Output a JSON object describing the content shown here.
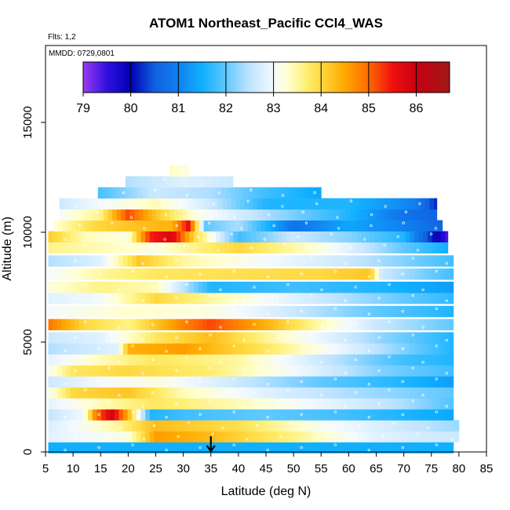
{
  "chart_data": {
    "type": "heatmap",
    "title": "ATOM1 Northeast_Pacific CCl4_WAS",
    "flights_note": "Flts: 1,2",
    "dates_note": "MMDD: 0729,0801",
    "xlabel": "Latitude (deg N)",
    "ylabel": "Altitude (m)",
    "xlim": [
      5,
      85
    ],
    "ylim": [
      0,
      18500
    ],
    "x_ticks": [
      5,
      10,
      15,
      20,
      25,
      30,
      35,
      40,
      45,
      50,
      55,
      60,
      65,
      70,
      75,
      80,
      85
    ],
    "y_ticks": [
      0,
      5000,
      10000,
      15000
    ],
    "colorbar": {
      "min": 79,
      "max": 86.7,
      "ticks": [
        79,
        80,
        81,
        82,
        83,
        84,
        85,
        86
      ],
      "stops": [
        [
          79.0,
          "#9a3cf0"
        ],
        [
          79.5,
          "#3010e0"
        ],
        [
          80.0,
          "#0000b4"
        ],
        [
          80.5,
          "#1060e0"
        ],
        [
          81.0,
          "#1080f0"
        ],
        [
          81.5,
          "#10b0ff"
        ],
        [
          82.0,
          "#60c8ff"
        ],
        [
          82.5,
          "#c0e4ff"
        ],
        [
          83.0,
          "#f4faff"
        ],
        [
          83.3,
          "#ffffd0"
        ],
        [
          83.7,
          "#ffee70"
        ],
        [
          84.0,
          "#ffd840"
        ],
        [
          84.5,
          "#ffa800"
        ],
        [
          85.0,
          "#ff6a00"
        ],
        [
          85.5,
          "#f01010"
        ],
        [
          86.0,
          "#c80010"
        ],
        [
          86.7,
          "#a01818"
        ]
      ]
    },
    "profile_bands": [
      {
        "alt": 200,
        "lat_min": 5.5,
        "lat_max": 79,
        "values": [
          {
            "lat": 5,
            "v": 81.5
          },
          {
            "lat": 80,
            "v": 81.5
          }
        ]
      },
      {
        "alt": 700,
        "lat_min": 5.5,
        "lat_max": 80,
        "values": [
          {
            "lat": 5,
            "v": 82.8
          },
          {
            "lat": 20,
            "v": 83.2
          },
          {
            "lat": 25,
            "v": 84.6
          },
          {
            "lat": 35,
            "v": 84.3
          },
          {
            "lat": 50,
            "v": 83.6
          },
          {
            "lat": 65,
            "v": 82.8
          },
          {
            "lat": 80,
            "v": 82.6
          }
        ]
      },
      {
        "alt": 1200,
        "lat_min": 5.5,
        "lat_max": 80,
        "values": [
          {
            "lat": 5,
            "v": 82.7
          },
          {
            "lat": 18,
            "v": 83.5
          },
          {
            "lat": 25,
            "v": 84.3
          },
          {
            "lat": 40,
            "v": 83.9
          },
          {
            "lat": 55,
            "v": 83.1
          },
          {
            "lat": 70,
            "v": 82.6
          },
          {
            "lat": 80,
            "v": 82.3
          }
        ]
      },
      {
        "alt": 1700,
        "lat_min": 5.5,
        "lat_max": 79,
        "values": [
          {
            "lat": 5,
            "v": 82.5
          },
          {
            "lat": 12,
            "v": 83.0
          },
          {
            "lat": 14,
            "v": 84.8
          },
          {
            "lat": 17,
            "v": 85.9
          },
          {
            "lat": 20,
            "v": 84.4
          },
          {
            "lat": 24,
            "v": 81.6
          },
          {
            "lat": 30,
            "v": 81.8
          },
          {
            "lat": 45,
            "v": 82.0
          },
          {
            "lat": 60,
            "v": 81.8
          },
          {
            "lat": 79,
            "v": 81.4
          }
        ]
      },
      {
        "alt": 2200,
        "lat_min": 5.5,
        "lat_max": 79,
        "values": [
          {
            "lat": 5,
            "v": 82.8
          },
          {
            "lat": 15,
            "v": 83.4
          },
          {
            "lat": 25,
            "v": 83.8
          },
          {
            "lat": 40,
            "v": 83.4
          },
          {
            "lat": 55,
            "v": 82.9
          },
          {
            "lat": 70,
            "v": 82.4
          },
          {
            "lat": 79,
            "v": 81.9
          }
        ]
      },
      {
        "alt": 2700,
        "lat_min": 5.5,
        "lat_max": 79,
        "values": [
          {
            "lat": 5,
            "v": 83.0
          },
          {
            "lat": 10,
            "v": 84.0
          },
          {
            "lat": 20,
            "v": 84.2
          },
          {
            "lat": 30,
            "v": 83.4
          },
          {
            "lat": 45,
            "v": 82.8
          },
          {
            "lat": 60,
            "v": 82.4
          },
          {
            "lat": 79,
            "v": 82.0
          }
        ]
      },
      {
        "alt": 3200,
        "lat_min": 5.5,
        "lat_max": 79,
        "values": [
          {
            "lat": 5,
            "v": 82.6
          },
          {
            "lat": 15,
            "v": 83.0
          },
          {
            "lat": 25,
            "v": 83.2
          },
          {
            "lat": 40,
            "v": 82.6
          },
          {
            "lat": 55,
            "v": 82.0
          },
          {
            "lat": 70,
            "v": 81.6
          },
          {
            "lat": 79,
            "v": 81.3
          }
        ]
      },
      {
        "alt": 3700,
        "lat_min": 5.5,
        "lat_max": 79,
        "values": [
          {
            "lat": 5,
            "v": 83.0
          },
          {
            "lat": 10,
            "v": 83.8
          },
          {
            "lat": 20,
            "v": 84.0
          },
          {
            "lat": 35,
            "v": 83.7
          },
          {
            "lat": 50,
            "v": 83.0
          },
          {
            "lat": 65,
            "v": 82.2
          },
          {
            "lat": 79,
            "v": 81.8
          }
        ]
      },
      {
        "alt": 4200,
        "lat_min": 5.5,
        "lat_max": 79,
        "values": [
          {
            "lat": 5,
            "v": 82.8
          },
          {
            "lat": 15,
            "v": 83.4
          },
          {
            "lat": 25,
            "v": 83.8
          },
          {
            "lat": 40,
            "v": 83.5
          },
          {
            "lat": 55,
            "v": 82.6
          },
          {
            "lat": 70,
            "v": 81.8
          },
          {
            "lat": 79,
            "v": 81.6
          }
        ]
      },
      {
        "alt": 4700,
        "lat_min": 5.5,
        "lat_max": 79,
        "values": [
          {
            "lat": 5,
            "v": 82.4
          },
          {
            "lat": 18,
            "v": 82.8
          },
          {
            "lat": 20,
            "v": 84.4
          },
          {
            "lat": 30,
            "v": 84.6
          },
          {
            "lat": 45,
            "v": 83.8
          },
          {
            "lat": 60,
            "v": 82.8
          },
          {
            "lat": 79,
            "v": 81.6
          }
        ]
      },
      {
        "alt": 5200,
        "lat_min": 5.5,
        "lat_max": 79,
        "values": [
          {
            "lat": 5,
            "v": 82.6
          },
          {
            "lat": 15,
            "v": 82.8
          },
          {
            "lat": 25,
            "v": 83.8
          },
          {
            "lat": 35,
            "v": 84.3
          },
          {
            "lat": 50,
            "v": 83.2
          },
          {
            "lat": 65,
            "v": 82.3
          },
          {
            "lat": 79,
            "v": 81.6
          }
        ]
      },
      {
        "alt": 5800,
        "lat_min": 5.5,
        "lat_max": 79,
        "values": [
          {
            "lat": 5,
            "v": 85.0
          },
          {
            "lat": 12,
            "v": 84.0
          },
          {
            "lat": 20,
            "v": 83.6
          },
          {
            "lat": 30,
            "v": 84.8
          },
          {
            "lat": 35,
            "v": 85.2
          },
          {
            "lat": 45,
            "v": 84.4
          },
          {
            "lat": 55,
            "v": 83.4
          },
          {
            "lat": 65,
            "v": 82.6
          },
          {
            "lat": 79,
            "v": 82.0
          }
        ]
      },
      {
        "alt": 6400,
        "lat_min": 5.5,
        "lat_max": 79,
        "values": [
          {
            "lat": 5,
            "v": 83.0
          },
          {
            "lat": 20,
            "v": 83.3
          },
          {
            "lat": 35,
            "v": 83.2
          },
          {
            "lat": 50,
            "v": 82.6
          },
          {
            "lat": 65,
            "v": 82.0
          },
          {
            "lat": 79,
            "v": 81.6
          }
        ]
      },
      {
        "alt": 7000,
        "lat_min": 5.5,
        "lat_max": 79,
        "values": [
          {
            "lat": 5,
            "v": 82.8
          },
          {
            "lat": 15,
            "v": 83.0
          },
          {
            "lat": 25,
            "v": 84.0
          },
          {
            "lat": 35,
            "v": 83.5
          },
          {
            "lat": 50,
            "v": 82.8
          },
          {
            "lat": 65,
            "v": 82.2
          },
          {
            "lat": 79,
            "v": 81.7
          }
        ]
      },
      {
        "alt": 7500,
        "lat_min": 5.5,
        "lat_max": 79,
        "values": [
          {
            "lat": 5,
            "v": 83.2
          },
          {
            "lat": 15,
            "v": 83.6
          },
          {
            "lat": 25,
            "v": 83.4
          },
          {
            "lat": 35,
            "v": 81.6
          },
          {
            "lat": 50,
            "v": 81.8
          },
          {
            "lat": 65,
            "v": 81.6
          },
          {
            "lat": 79,
            "v": 81.3
          }
        ]
      },
      {
        "alt": 8100,
        "lat_min": 5.5,
        "lat_max": 79,
        "values": [
          {
            "lat": 5,
            "v": 83.0
          },
          {
            "lat": 15,
            "v": 83.5
          },
          {
            "lat": 25,
            "v": 83.8
          },
          {
            "lat": 40,
            "v": 83.9
          },
          {
            "lat": 55,
            "v": 84.0
          },
          {
            "lat": 64,
            "v": 84.2
          },
          {
            "lat": 66,
            "v": 82.6
          },
          {
            "lat": 79,
            "v": 81.8
          }
        ]
      },
      {
        "alt": 8700,
        "lat_min": 5.5,
        "lat_max": 79,
        "values": [
          {
            "lat": 5,
            "v": 82.4
          },
          {
            "lat": 15,
            "v": 82.8
          },
          {
            "lat": 22,
            "v": 84.2
          },
          {
            "lat": 30,
            "v": 83.5
          },
          {
            "lat": 45,
            "v": 83.0
          },
          {
            "lat": 60,
            "v": 82.6
          },
          {
            "lat": 79,
            "v": 81.8
          }
        ]
      },
      {
        "alt": 9300,
        "lat_min": 5.5,
        "lat_max": 78,
        "values": [
          {
            "lat": 5,
            "v": 83.6
          },
          {
            "lat": 15,
            "v": 83.4
          },
          {
            "lat": 25,
            "v": 83.2
          },
          {
            "lat": 40,
            "v": 84.0
          },
          {
            "lat": 55,
            "v": 83.2
          },
          {
            "lat": 70,
            "v": 82.0
          },
          {
            "lat": 78,
            "v": 81.5
          }
        ]
      },
      {
        "alt": 9800,
        "lat_min": 5.5,
        "lat_max": 78,
        "values": [
          {
            "lat": 5,
            "v": 84.2
          },
          {
            "lat": 12,
            "v": 83.4
          },
          {
            "lat": 20,
            "v": 83.2
          },
          {
            "lat": 24,
            "v": 85.4
          },
          {
            "lat": 28,
            "v": 85.8
          },
          {
            "lat": 32,
            "v": 84.0
          },
          {
            "lat": 40,
            "v": 81.8
          },
          {
            "lat": 50,
            "v": 82.6
          },
          {
            "lat": 60,
            "v": 82.2
          },
          {
            "lat": 70,
            "v": 81.6
          },
          {
            "lat": 78,
            "v": 79.4
          }
        ]
      },
      {
        "alt": 10300,
        "lat_min": 6.5,
        "lat_max": 77,
        "values": [
          {
            "lat": 6,
            "v": 83.2
          },
          {
            "lat": 14,
            "v": 84.0
          },
          {
            "lat": 20,
            "v": 84.2
          },
          {
            "lat": 28,
            "v": 84.4
          },
          {
            "lat": 31,
            "v": 85.6
          },
          {
            "lat": 34,
            "v": 82.0
          },
          {
            "lat": 40,
            "v": 82.4
          },
          {
            "lat": 50,
            "v": 80.8
          },
          {
            "lat": 60,
            "v": 81.4
          },
          {
            "lat": 70,
            "v": 81.0
          },
          {
            "lat": 77,
            "v": 80.6
          }
        ]
      },
      {
        "alt": 10800,
        "lat_min": 7.5,
        "lat_max": 76,
        "values": [
          {
            "lat": 7,
            "v": 83.0
          },
          {
            "lat": 15,
            "v": 83.6
          },
          {
            "lat": 20,
            "v": 85.2
          },
          {
            "lat": 25,
            "v": 84.2
          },
          {
            "lat": 32,
            "v": 83.2
          },
          {
            "lat": 45,
            "v": 82.4
          },
          {
            "lat": 60,
            "v": 81.6
          },
          {
            "lat": 70,
            "v": 80.8
          },
          {
            "lat": 76,
            "v": 80.6
          }
        ]
      },
      {
        "alt": 11300,
        "lat_min": 7.5,
        "lat_max": 76,
        "values": [
          {
            "lat": 7,
            "v": 82.6
          },
          {
            "lat": 15,
            "v": 83.0
          },
          {
            "lat": 25,
            "v": 83.4
          },
          {
            "lat": 35,
            "v": 82.6
          },
          {
            "lat": 45,
            "v": 81.6
          },
          {
            "lat": 60,
            "v": 81.6
          },
          {
            "lat": 72,
            "v": 81.0
          },
          {
            "lat": 76,
            "v": 80.2
          }
        ]
      },
      {
        "alt": 11800,
        "lat_min": 14.5,
        "lat_max": 55,
        "values": [
          {
            "lat": 14,
            "v": 81.8
          },
          {
            "lat": 25,
            "v": 82.6
          },
          {
            "lat": 35,
            "v": 82.4
          },
          {
            "lat": 45,
            "v": 81.8
          },
          {
            "lat": 55,
            "v": 81.4
          }
        ]
      },
      {
        "alt": 12300,
        "lat_min": 19.5,
        "lat_max": 39,
        "values": [
          {
            "lat": 19,
            "v": 82.4
          },
          {
            "lat": 30,
            "v": 82.8
          },
          {
            "lat": 39,
            "v": 82.6
          }
        ]
      },
      {
        "alt": 12800,
        "lat_min": 27.5,
        "lat_max": 31,
        "values": [
          {
            "lat": 27,
            "v": 83.4
          },
          {
            "lat": 31,
            "v": 83.2
          }
        ]
      }
    ],
    "annotation": {
      "type": "arrow",
      "lat": 35,
      "label": "down arrow at 35 deg N"
    }
  }
}
